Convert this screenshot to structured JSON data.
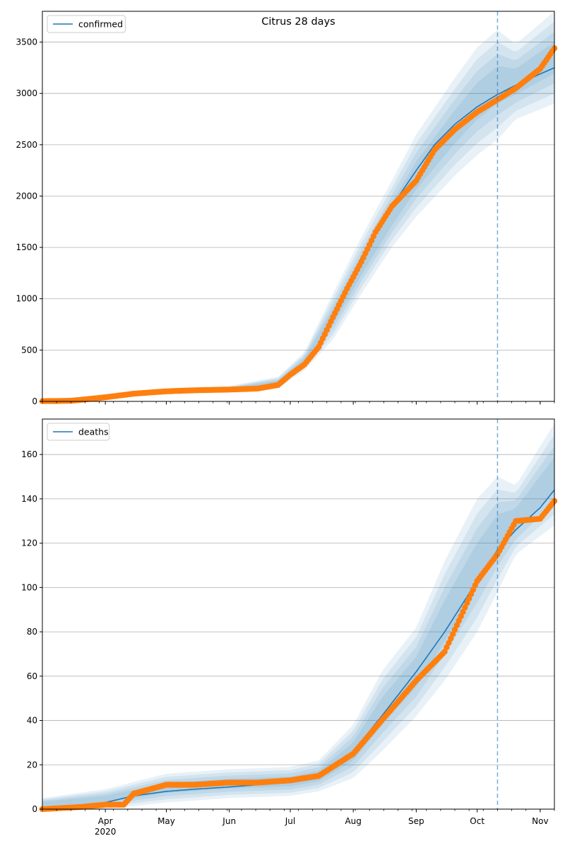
{
  "chart_data": [
    {
      "type": "line",
      "title": "Citrus 28 days",
      "legend": {
        "label": "confirmed",
        "placement": "top-left"
      },
      "xlabel": "",
      "ylabel": "",
      "ylim": [
        0,
        3800
      ],
      "yticks": [
        0,
        500,
        1000,
        1500,
        2000,
        2500,
        3000,
        3500
      ],
      "grid": "horizontal",
      "forecast_start": "2020-10-11",
      "series": [
        {
          "role": "model",
          "color": "#1f77b4",
          "x": [
            "2020-03-01",
            "2020-03-15",
            "2020-03-20",
            "2020-04-01",
            "2020-04-15",
            "2020-05-01",
            "2020-05-15",
            "2020-06-01",
            "2020-06-15",
            "2020-06-25",
            "2020-07-01",
            "2020-07-08",
            "2020-07-15",
            "2020-07-22",
            "2020-07-29",
            "2020-08-05",
            "2020-08-12",
            "2020-08-20",
            "2020-09-01",
            "2020-09-10",
            "2020-09-20",
            "2020-10-01",
            "2020-10-11",
            "2020-10-20",
            "2020-11-01",
            "2020-11-08"
          ],
          "y": [
            5,
            8,
            12,
            45,
            80,
            100,
            108,
            120,
            135,
            180,
            270,
            380,
            550,
            800,
            1120,
            1400,
            1650,
            1900,
            2250,
            2500,
            2700,
            2870,
            2990,
            3080,
            3190,
            3250
          ]
        },
        {
          "role": "observed",
          "color": "#ff7f0e",
          "x": [
            "2020-03-01",
            "2020-03-15",
            "2020-03-20",
            "2020-04-01",
            "2020-04-15",
            "2020-05-01",
            "2020-05-15",
            "2020-06-01",
            "2020-06-15",
            "2020-06-25",
            "2020-07-01",
            "2020-07-08",
            "2020-07-15",
            "2020-07-22",
            "2020-07-29",
            "2020-08-05",
            "2020-08-12",
            "2020-08-20",
            "2020-09-01",
            "2020-09-10",
            "2020-09-20",
            "2020-10-01",
            "2020-10-11",
            "2020-10-20",
            "2020-11-01",
            "2020-11-08"
          ],
          "y": [
            2,
            6,
            15,
            40,
            75,
            98,
            108,
            115,
            125,
            160,
            260,
            360,
            530,
            820,
            1100,
            1360,
            1650,
            1900,
            2150,
            2450,
            2650,
            2820,
            2940,
            3050,
            3240,
            3440
          ]
        }
      ],
      "band": {
        "x": [
          "2020-03-01",
          "2020-04-01",
          "2020-05-01",
          "2020-06-01",
          "2020-06-25",
          "2020-07-08",
          "2020-07-22",
          "2020-08-05",
          "2020-08-20",
          "2020-09-01",
          "2020-09-20",
          "2020-10-01",
          "2020-10-11",
          "2020-10-20",
          "2020-11-08"
        ],
        "lower": [
          0,
          20,
          80,
          90,
          130,
          300,
          600,
          1050,
          1500,
          1800,
          2200,
          2400,
          2550,
          2750,
          2900
        ],
        "upper": [
          12,
          65,
          125,
          150,
          240,
          480,
          1050,
          1600,
          2150,
          2600,
          3150,
          3450,
          3620,
          3480,
          3800
        ]
      }
    },
    {
      "type": "line",
      "title": "",
      "legend": {
        "label": "deaths",
        "placement": "top-left"
      },
      "xlabel": "",
      "ylabel": "",
      "ylim": [
        0,
        176
      ],
      "yticks": [
        0,
        20,
        40,
        60,
        80,
        100,
        120,
        140,
        160
      ],
      "grid": "horizontal",
      "forecast_start": "2020-10-11",
      "series": [
        {
          "role": "model",
          "color": "#1f77b4",
          "x": [
            "2020-03-01",
            "2020-03-20",
            "2020-04-01",
            "2020-04-15",
            "2020-05-01",
            "2020-05-15",
            "2020-06-01",
            "2020-06-15",
            "2020-07-01",
            "2020-07-15",
            "2020-08-01",
            "2020-08-15",
            "2020-09-01",
            "2020-09-15",
            "2020-10-01",
            "2020-10-11",
            "2020-10-20",
            "2020-11-01",
            "2020-11-08"
          ],
          "y": [
            0,
            1,
            3,
            6,
            8,
            9,
            10,
            11,
            12,
            14,
            26,
            42,
            62,
            80,
            103,
            117,
            126,
            136,
            144
          ]
        },
        {
          "role": "observed",
          "color": "#ff7f0e",
          "x": [
            "2020-03-01",
            "2020-03-20",
            "2020-04-01",
            "2020-04-10",
            "2020-04-15",
            "2020-05-01",
            "2020-05-15",
            "2020-06-01",
            "2020-06-15",
            "2020-07-01",
            "2020-07-15",
            "2020-08-01",
            "2020-08-15",
            "2020-09-01",
            "2020-09-15",
            "2020-10-01",
            "2020-10-11",
            "2020-10-20",
            "2020-11-01",
            "2020-11-08"
          ],
          "y": [
            0,
            1,
            2,
            2,
            7,
            11,
            11,
            12,
            12,
            13,
            15,
            25,
            40,
            58,
            71,
            103,
            115,
            130,
            131,
            139
          ]
        }
      ],
      "band": {
        "x": [
          "2020-03-01",
          "2020-04-01",
          "2020-05-01",
          "2020-06-01",
          "2020-07-01",
          "2020-07-15",
          "2020-08-01",
          "2020-08-15",
          "2020-09-01",
          "2020-09-15",
          "2020-10-01",
          "2020-10-11",
          "2020-10-20",
          "2020-11-08"
        ],
        "lower": [
          0,
          0,
          3,
          5,
          6,
          8,
          14,
          26,
          42,
          58,
          80,
          98,
          115,
          128
        ],
        "upper": [
          5,
          9,
          16,
          18,
          19,
          22,
          38,
          62,
          82,
          112,
          140,
          150,
          146,
          174
        ]
      }
    }
  ],
  "x_axis": {
    "start": "2020-03-01",
    "end": "2020-11-08",
    "ticks": [
      {
        "date": "2020-04-01",
        "label": "Apr",
        "sublabel": "2020"
      },
      {
        "date": "2020-05-01",
        "label": "May",
        "sublabel": ""
      },
      {
        "date": "2020-06-01",
        "label": "Jun",
        "sublabel": ""
      },
      {
        "date": "2020-07-01",
        "label": "Jul",
        "sublabel": ""
      },
      {
        "date": "2020-08-01",
        "label": "Aug",
        "sublabel": ""
      },
      {
        "date": "2020-09-01",
        "label": "Sep",
        "sublabel": ""
      },
      {
        "date": "2020-10-01",
        "label": "Oct",
        "sublabel": ""
      },
      {
        "date": "2020-11-01",
        "label": "Nov",
        "sublabel": ""
      }
    ]
  }
}
